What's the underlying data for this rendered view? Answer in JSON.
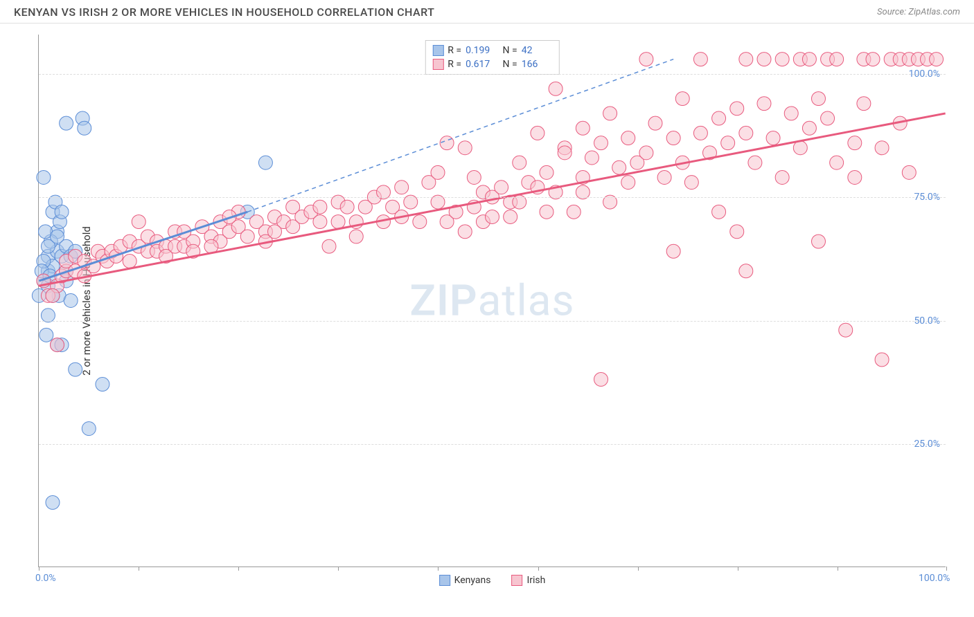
{
  "header": {
    "title": "KENYAN VS IRISH 2 OR MORE VEHICLES IN HOUSEHOLD CORRELATION CHART",
    "source": "Source: ZipAtlas.com"
  },
  "chart": {
    "type": "scatter",
    "y_axis_label": "2 or more Vehicles in Household",
    "xlim": [
      0,
      100
    ],
    "ylim": [
      0,
      108
    ],
    "x_ticks": [
      0,
      11,
      22,
      33,
      44,
      55,
      66,
      77,
      88,
      100
    ],
    "y_gridlines": [
      25,
      50,
      75,
      100
    ],
    "y_tick_labels": [
      "25.0%",
      "50.0%",
      "75.0%",
      "100.0%"
    ],
    "x_tick_labels_shown": {
      "0": "0.0%",
      "100": "100.0%"
    },
    "background_color": "#ffffff",
    "grid_color": "#dddddd",
    "axis_color": "#999999",
    "marker_radius": 10,
    "marker_opacity": 0.55,
    "watermark": "ZIPatlas",
    "series": [
      {
        "name": "Kenyans",
        "fill_color": "#a8c5ea",
        "stroke_color": "#5b8dd6",
        "r_value": "0.199",
        "n_value": "42",
        "regression": {
          "x1": 0,
          "y1": 58,
          "x2": 23,
          "y2": 72,
          "dash_x2": 70,
          "dash_y2": 103
        },
        "points": [
          [
            0,
            55
          ],
          [
            0.5,
            58
          ],
          [
            1,
            60
          ],
          [
            1,
            63
          ],
          [
            1.5,
            61
          ],
          [
            2,
            64
          ],
          [
            2,
            68
          ],
          [
            1,
            57
          ],
          [
            1.3,
            66
          ],
          [
            2.2,
            55
          ],
          [
            2.5,
            63
          ],
          [
            3,
            65
          ],
          [
            3,
            60
          ],
          [
            3.5,
            63
          ],
          [
            3,
            58
          ],
          [
            1.5,
            72
          ],
          [
            3,
            90
          ],
          [
            4.8,
            91
          ],
          [
            5,
            89
          ],
          [
            0.5,
            79
          ],
          [
            1,
            51
          ],
          [
            0.8,
            47
          ],
          [
            2,
            45
          ],
          [
            2.5,
            45
          ],
          [
            4,
            40
          ],
          [
            7,
            37
          ],
          [
            5.5,
            28
          ],
          [
            1.5,
            13
          ],
          [
            1.8,
            74
          ],
          [
            2.3,
            70
          ],
          [
            1,
            65
          ],
          [
            1.5,
            55
          ],
          [
            0.5,
            62
          ],
          [
            0.7,
            68
          ],
          [
            2,
            67
          ],
          [
            0.3,
            60
          ],
          [
            2.5,
            72
          ],
          [
            4,
            64
          ],
          [
            23,
            72
          ],
          [
            25,
            82
          ],
          [
            3.5,
            54
          ],
          [
            1.2,
            59
          ]
        ]
      },
      {
        "name": "Irish",
        "fill_color": "#f7c5d0",
        "stroke_color": "#e85a7e",
        "r_value": "0.617",
        "n_value": "166",
        "regression": {
          "x1": 0,
          "y1": 57,
          "x2": 100,
          "y2": 92
        },
        "points": [
          [
            1,
            55
          ],
          [
            0.5,
            58
          ],
          [
            2,
            57
          ],
          [
            1.5,
            55
          ],
          [
            2.5,
            59
          ],
          [
            3,
            60
          ],
          [
            3,
            62
          ],
          [
            4,
            60
          ],
          [
            4,
            63
          ],
          [
            5,
            62
          ],
          [
            5,
            59
          ],
          [
            6,
            61
          ],
          [
            6.5,
            64
          ],
          [
            7,
            63
          ],
          [
            7.5,
            62
          ],
          [
            8,
            64
          ],
          [
            8.5,
            63
          ],
          [
            9,
            65
          ],
          [
            10,
            62
          ],
          [
            10,
            66
          ],
          [
            11,
            65
          ],
          [
            11,
            70
          ],
          [
            12,
            64
          ],
          [
            12,
            67
          ],
          [
            13,
            66
          ],
          [
            13,
            64
          ],
          [
            14,
            65
          ],
          [
            15,
            65
          ],
          [
            15,
            68
          ],
          [
            16,
            65
          ],
          [
            17,
            66
          ],
          [
            17,
            64
          ],
          [
            18,
            69
          ],
          [
            19,
            67
          ],
          [
            20,
            66
          ],
          [
            20,
            70
          ],
          [
            21,
            68
          ],
          [
            22,
            69
          ],
          [
            22,
            72
          ],
          [
            23,
            67
          ],
          [
            24,
            70
          ],
          [
            25,
            68
          ],
          [
            25,
            66
          ],
          [
            26,
            71
          ],
          [
            27,
            70
          ],
          [
            28,
            69
          ],
          [
            28,
            73
          ],
          [
            29,
            71
          ],
          [
            30,
            72
          ],
          [
            31,
            70
          ],
          [
            32,
            65
          ],
          [
            33,
            70
          ],
          [
            33,
            74
          ],
          [
            34,
            73
          ],
          [
            35,
            70
          ],
          [
            36,
            73
          ],
          [
            37,
            75
          ],
          [
            38,
            70
          ],
          [
            38,
            76
          ],
          [
            39,
            73
          ],
          [
            40,
            71
          ],
          [
            41,
            74
          ],
          [
            42,
            70
          ],
          [
            43,
            78
          ],
          [
            44,
            74
          ],
          [
            45,
            70
          ],
          [
            45,
            86
          ],
          [
            46,
            72
          ],
          [
            47,
            85
          ],
          [
            47,
            68
          ],
          [
            48,
            79
          ],
          [
            49,
            76
          ],
          [
            49,
            70
          ],
          [
            50,
            75
          ],
          [
            51,
            77
          ],
          [
            52,
            71
          ],
          [
            53,
            82
          ],
          [
            54,
            78
          ],
          [
            55,
            77
          ],
          [
            55,
            88
          ],
          [
            56,
            80
          ],
          [
            57,
            76
          ],
          [
            57,
            97
          ],
          [
            58,
            85
          ],
          [
            58,
            84
          ],
          [
            59,
            72
          ],
          [
            60,
            79
          ],
          [
            60,
            89
          ],
          [
            61,
            83
          ],
          [
            62,
            86
          ],
          [
            63,
            74
          ],
          [
            63,
            92
          ],
          [
            64,
            81
          ],
          [
            65,
            78
          ],
          [
            65,
            87
          ],
          [
            66,
            82
          ],
          [
            67,
            84
          ],
          [
            67,
            103
          ],
          [
            68,
            90
          ],
          [
            69,
            79
          ],
          [
            70,
            87
          ],
          [
            71,
            82
          ],
          [
            71,
            95
          ],
          [
            72,
            78
          ],
          [
            73,
            88
          ],
          [
            73,
            103
          ],
          [
            74,
            84
          ],
          [
            75,
            91
          ],
          [
            75,
            72
          ],
          [
            76,
            86
          ],
          [
            77,
            93
          ],
          [
            77,
            68
          ],
          [
            78,
            88
          ],
          [
            78,
            103
          ],
          [
            79,
            82
          ],
          [
            80,
            94
          ],
          [
            80,
            103
          ],
          [
            81,
            87
          ],
          [
            82,
            79
          ],
          [
            82,
            103
          ],
          [
            83,
            92
          ],
          [
            84,
            85
          ],
          [
            84,
            103
          ],
          [
            85,
            89
          ],
          [
            85,
            103
          ],
          [
            86,
            95
          ],
          [
            86,
            66
          ],
          [
            87,
            91
          ],
          [
            87,
            103
          ],
          [
            88,
            82
          ],
          [
            88,
            103
          ],
          [
            89,
            48
          ],
          [
            90,
            79
          ],
          [
            90,
            86
          ],
          [
            91,
            103
          ],
          [
            91,
            94
          ],
          [
            92,
            103
          ],
          [
            93,
            85
          ],
          [
            93,
            42
          ],
          [
            94,
            103
          ],
          [
            95,
            90
          ],
          [
            95,
            103
          ],
          [
            96,
            80
          ],
          [
            96,
            103
          ],
          [
            97,
            103
          ],
          [
            98,
            103
          ],
          [
            99,
            103
          ],
          [
            14,
            63
          ],
          [
            16,
            68
          ],
          [
            19,
            65
          ],
          [
            21,
            71
          ],
          [
            26,
            68
          ],
          [
            31,
            73
          ],
          [
            35,
            67
          ],
          [
            40,
            77
          ],
          [
            44,
            80
          ],
          [
            52,
            74
          ],
          [
            56,
            72
          ],
          [
            48,
            73
          ],
          [
            50,
            71
          ],
          [
            53,
            74
          ],
          [
            62,
            38
          ],
          [
            60,
            76
          ],
          [
            70,
            64
          ],
          [
            78,
            60
          ],
          [
            2,
            45
          ]
        ]
      }
    ],
    "legend_bottom": [
      {
        "label": "Kenyans",
        "fill": "#a8c5ea",
        "stroke": "#5b8dd6"
      },
      {
        "label": "Irish",
        "fill": "#f7c5d0",
        "stroke": "#e85a7e"
      }
    ]
  }
}
